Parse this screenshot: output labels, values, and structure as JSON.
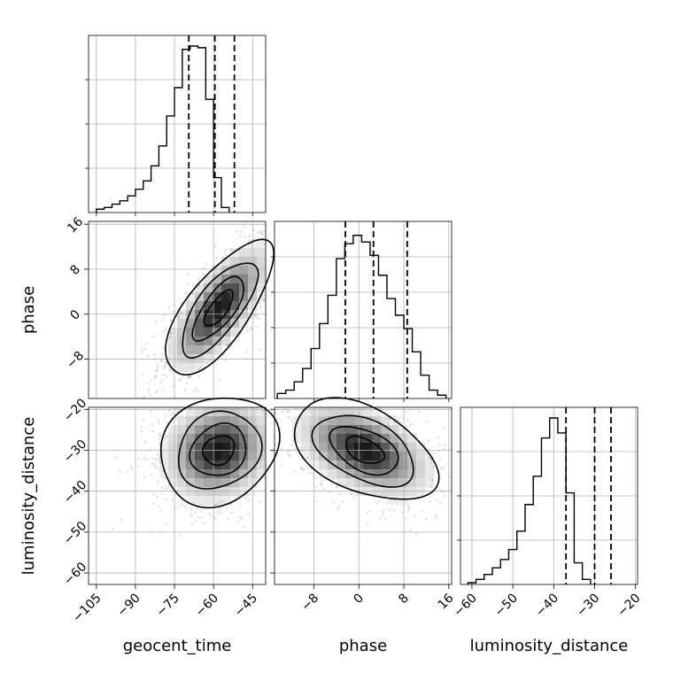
{
  "chart_data": {
    "type": "corner",
    "parameters": [
      "geocent_time",
      "phase",
      "luminosity_distance"
    ],
    "axis_labels": {
      "geocent_time": "geocent_time",
      "phase": "phase",
      "luminosity_distance": "luminosity_distance"
    },
    "ranges": {
      "geocent_time": [
        -108,
        -40
      ],
      "phase": [
        -15,
        16.5
      ],
      "luminosity_distance": [
        -62.8,
        -19.5
      ]
    },
    "ticks": {
      "geocent_time": [
        -105,
        -90,
        -75,
        -60,
        -45
      ],
      "phase_y": [
        -8,
        0,
        8,
        16
      ],
      "phase_x": [
        -8,
        0,
        8,
        16
      ],
      "luminosity_distance_y": [
        -60,
        -50,
        -40,
        -30,
        -20
      ],
      "luminosity_distance_x": [
        -60,
        -50,
        -40,
        -30,
        -20
      ]
    },
    "grid": true,
    "quantiles": {
      "geocent_time": [
        -69.5,
        -59.5,
        -52
      ],
      "phase": [
        -2.4,
        2.6,
        8.6
      ],
      "luminosity_distance": [
        -37,
        -30,
        -26
      ]
    },
    "histograms": {
      "geocent_time": {
        "x0": -105,
        "bin_width": 3,
        "counts": [
          0.02,
          0.03,
          0.05,
          0.07,
          0.1,
          0.14,
          0.19,
          0.28,
          0.4,
          0.58,
          0.75,
          0.98,
          1.0,
          0.99,
          0.68,
          0.21,
          0.03
        ]
      },
      "phase": {
        "x0": -14.5,
        "bin_width": 1.5,
        "counts": [
          0.03,
          0.05,
          0.1,
          0.18,
          0.3,
          0.45,
          0.62,
          0.84,
          0.93,
          0.98,
          0.94,
          0.86,
          0.74,
          0.6,
          0.5,
          0.42,
          0.28,
          0.14,
          0.05,
          0.02
        ]
      },
      "luminosity_distance": {
        "x0": -61,
        "bin_width": 2,
        "counts": [
          0.01,
          0.03,
          0.06,
          0.1,
          0.15,
          0.21,
          0.32,
          0.48,
          0.65,
          0.88,
          1.0,
          0.91,
          0.55,
          0.13,
          0.03
        ]
      }
    },
    "scatter_models": {
      "phase_vs_geocent_time": {
        "mean": [
          -58,
          1
        ],
        "sd": [
          10,
          5.8
        ],
        "corr": 0.72
      },
      "luminosity_distance_vs_geocent_time": {
        "mean": [
          -58,
          -30
        ],
        "sd": [
          11,
          6.5
        ],
        "corr": 0.15
      },
      "luminosity_distance_vs_phase": {
        "mean": [
          1,
          -30
        ],
        "sd": [
          6.2,
          6.0
        ],
        "corr": -0.45
      }
    }
  }
}
